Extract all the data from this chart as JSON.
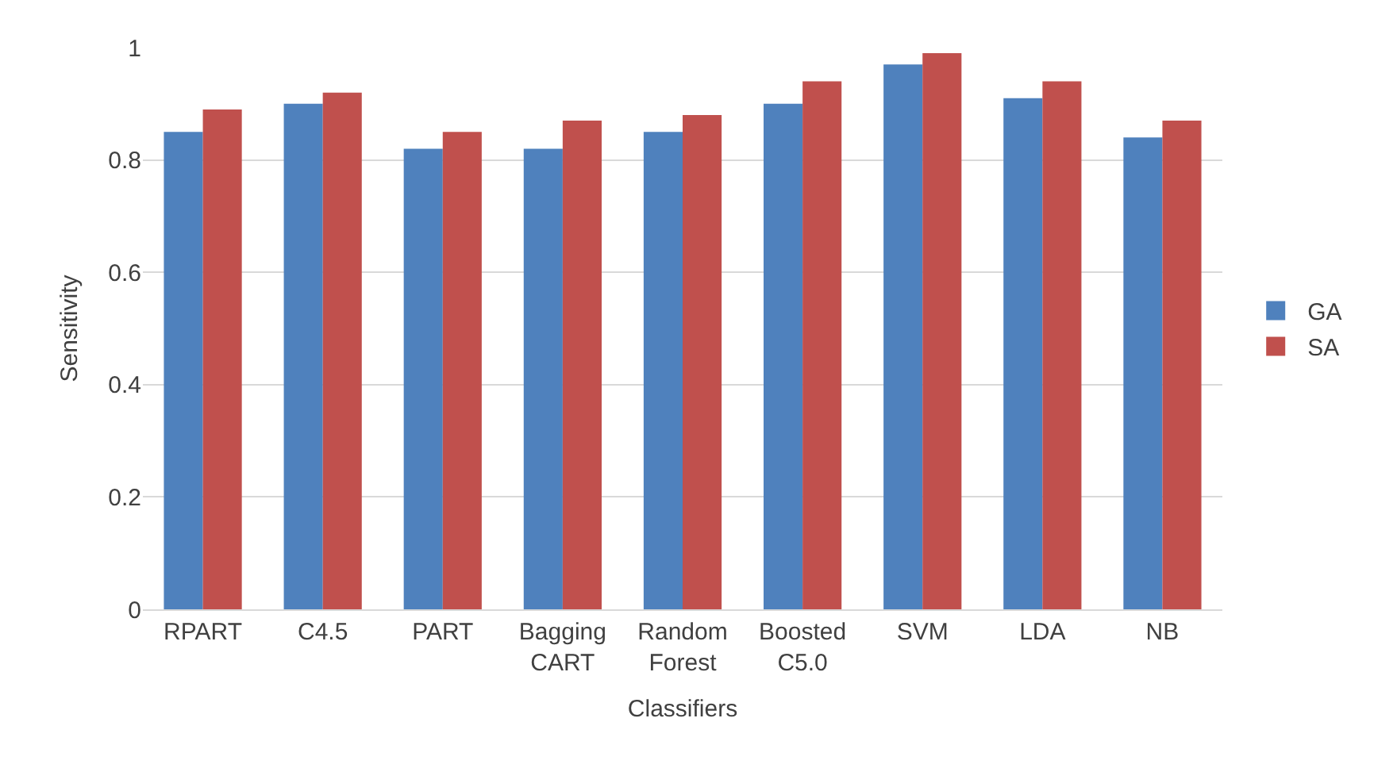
{
  "chart_data": {
    "type": "bar",
    "xlabel": "Classifiers",
    "ylabel": "Sensitivity",
    "categories": [
      "RPART",
      "C4.5",
      "PART",
      "Bagging CART",
      "Random Forest",
      "Boosted C5.0",
      "SVM",
      "LDA",
      "NB"
    ],
    "series": [
      {
        "name": "GA",
        "color": "#4f81bd",
        "values": [
          0.85,
          0.9,
          0.82,
          0.82,
          0.85,
          0.9,
          0.97,
          0.91,
          0.84
        ]
      },
      {
        "name": "SA",
        "color": "#c0504d",
        "values": [
          0.89,
          0.92,
          0.85,
          0.87,
          0.88,
          0.94,
          0.99,
          0.94,
          0.87
        ]
      }
    ],
    "ylim": [
      0,
      1
    ],
    "yticks": [
      0,
      0.2,
      0.4,
      0.6,
      0.8,
      1
    ],
    "grid": "y",
    "legend": "right"
  }
}
